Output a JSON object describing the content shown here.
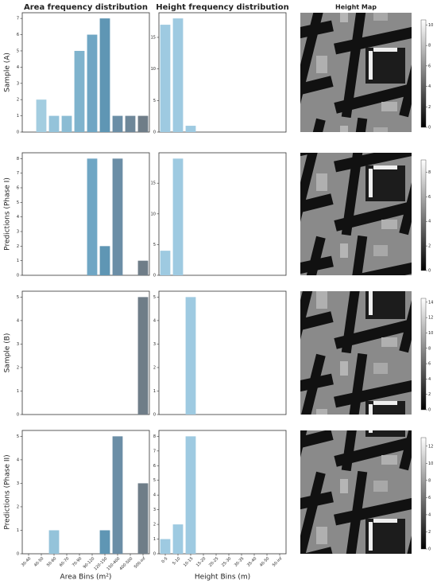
{
  "chart_data": [
    {
      "type": "bar",
      "title": "Area frequency distribution",
      "y_label": "Sample (A)",
      "values": [
        0,
        2,
        1,
        1,
        5,
        6,
        7,
        1,
        1,
        1
      ],
      "colors": [
        "#a9d2e4",
        "#a3cde0",
        "#94c3da",
        "#8bbcd4",
        "#7fb3cd",
        "#6fa6c4",
        "#5f96b4",
        "#6b8ea6",
        "#6e8799",
        "#6f7d88"
      ],
      "ylim": [
        0,
        7.35
      ],
      "yticks": [
        0,
        1,
        2,
        3,
        4,
        5,
        6,
        7
      ]
    },
    {
      "type": "bar",
      "title": "Height frequency distribution",
      "values": [
        17,
        18,
        1,
        0,
        0,
        0,
        0,
        0,
        0,
        0
      ],
      "color": "#9ecae1",
      "ylim": [
        0,
        18.9
      ],
      "yticks": [
        0,
        5,
        10,
        15
      ]
    },
    {
      "type": "bar",
      "y_label": "Predictions (Phase I)",
      "values": [
        0,
        0,
        0,
        0,
        0,
        8,
        2,
        8,
        0,
        1
      ],
      "colors": [
        "#a9d2e4",
        "#a3cde0",
        "#94c3da",
        "#8bbcd4",
        "#7fb3cd",
        "#6fa6c4",
        "#5f96b4",
        "#6b8ea6",
        "#6e8799",
        "#6f7d88"
      ],
      "ylim": [
        0,
        8.4
      ],
      "yticks": [
        0,
        1,
        2,
        3,
        4,
        5,
        6,
        7,
        8
      ]
    },
    {
      "type": "bar",
      "values": [
        4,
        19,
        0,
        0,
        0,
        0,
        0,
        0,
        0,
        0
      ],
      "color": "#9ecae1",
      "ylim": [
        0,
        19.95
      ],
      "yticks": [
        0,
        5,
        10,
        15
      ]
    },
    {
      "type": "bar",
      "y_label": "Sample (B)",
      "values": [
        0,
        0,
        0,
        0,
        0,
        0,
        0,
        0,
        0,
        5
      ],
      "colors": [
        "#a9d2e4",
        "#a3cde0",
        "#94c3da",
        "#8bbcd4",
        "#7fb3cd",
        "#6fa6c4",
        "#5f96b4",
        "#6b8ea6",
        "#6e8799",
        "#6f7d88"
      ],
      "ylim": [
        0,
        5.25
      ],
      "yticks": [
        0,
        1,
        2,
        3,
        4,
        5
      ]
    },
    {
      "type": "bar",
      "values": [
        0,
        0,
        5,
        0,
        0,
        0,
        0,
        0,
        0,
        0
      ],
      "color": "#9ecae1",
      "ylim": [
        0,
        5.25
      ],
      "yticks": [
        0,
        1,
        2,
        3,
        4,
        5
      ]
    },
    {
      "type": "bar",
      "y_label": "Predictions (Phase II)",
      "x_label": "Area Bins (m²)",
      "categories": [
        "30-40",
        "40-50",
        "50-60",
        "60-70",
        "70-90",
        "90-120",
        "120-150",
        "150-400",
        "400-500",
        "500-inf"
      ],
      "values": [
        0,
        0,
        1,
        0,
        0,
        0,
        1,
        5,
        0,
        3
      ],
      "colors": [
        "#a9d2e4",
        "#a3cde0",
        "#94c3da",
        "#8bbcd4",
        "#7fb3cd",
        "#6fa6c4",
        "#5f96b4",
        "#6b8ea6",
        "#6e8799",
        "#6f7d88"
      ],
      "ylim": [
        0,
        5.25
      ],
      "yticks": [
        0,
        1,
        2,
        3,
        4,
        5
      ]
    },
    {
      "type": "bar",
      "x_label": "Height Bins (m)",
      "categories": [
        "0-5",
        "5-10",
        "10-15",
        "15-20",
        "20-25",
        "25-30",
        "30-35",
        "35-40",
        "40-50",
        "50-inf"
      ],
      "values": [
        1,
        2,
        8,
        0,
        0,
        0,
        0,
        0,
        0,
        0
      ],
      "color": "#9ecae1",
      "ylim": [
        0,
        8.4
      ],
      "yticks": [
        0,
        1,
        2,
        3,
        4,
        5,
        6,
        7,
        8
      ]
    }
  ],
  "height_map_title": "Height Map",
  "height_maps": [
    {
      "colorbar_lim": [
        0,
        10.5
      ],
      "colorbar_ticks": [
        0,
        2,
        4,
        6,
        8,
        10
      ]
    },
    {
      "colorbar_lim": [
        0,
        9
      ],
      "colorbar_ticks": [
        0,
        2,
        4,
        6,
        8
      ]
    },
    {
      "colorbar_lim": [
        0,
        14.5
      ],
      "colorbar_ticks": [
        0,
        2,
        4,
        6,
        8,
        10,
        12,
        14
      ]
    },
    {
      "colorbar_lim": [
        0,
        13
      ],
      "colorbar_ticks": [
        0,
        2,
        4,
        6,
        8,
        10,
        12
      ]
    }
  ]
}
